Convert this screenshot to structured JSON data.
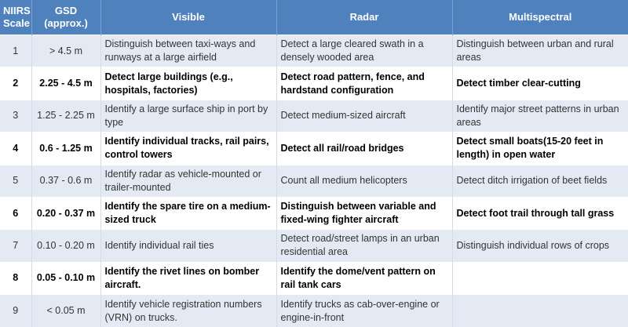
{
  "headers": {
    "scale": "NIIRS\nScale",
    "gsd": "GSD\n(approx.)",
    "visible": "Visible",
    "radar": "Radar",
    "multispectral": "Multispectral"
  },
  "rows": [
    {
      "scale": "1",
      "gsd": "> 4.5 m",
      "visible": "Distinguish between taxi-ways and runways at a large airfield",
      "radar": "Detect a large cleared swath in a densely wooded area",
      "multispectral": "Distinguish between urban and rural areas"
    },
    {
      "scale": "2",
      "gsd": "2.25 - 4.5 m",
      "visible": "Detect large buildings (e.g., hospitals, factories)",
      "radar": "Detect road pattern, fence, and hardstand configuration",
      "multispectral": "Detect timber clear-cutting"
    },
    {
      "scale": "3",
      "gsd": "1.25 - 2.25 m",
      "visible": "Identify a large surface ship in port by type",
      "radar": "Detect medium-sized aircraft",
      "multispectral": "Identify major street patterns in urban areas"
    },
    {
      "scale": "4",
      "gsd": "0.6 - 1.25 m",
      "visible": "Identify individual tracks, rail pairs, control towers",
      "radar": "Detect all rail/road bridges",
      "multispectral": "Detect small boats(15-20 feet in length) in open water"
    },
    {
      "scale": "5",
      "gsd": "0.37 - 0.6 m",
      "visible": "Identify radar as vehicle-mounted or trailer-mounted",
      "radar": "Count all medium helicopters",
      "multispectral": "Detect ditch irrigation of beet fields"
    },
    {
      "scale": "6",
      "gsd": "0.20 - 0.37 m",
      "visible": "Identify the spare tire on a medium-sized truck",
      "radar": "Distinguish between variable and fixed-wing fighter aircraft",
      "multispectral": "Detect foot trail through tall grass"
    },
    {
      "scale": "7",
      "gsd": "0.10 - 0.20 m",
      "visible": "Identify individual rail ties",
      "radar": "Detect road/street lamps in an urban residential area",
      "multispectral": "Distinguish individual rows of crops"
    },
    {
      "scale": "8",
      "gsd": "0.05 - 0.10 m",
      "visible": "Identify the rivet lines on bomber aircraft.",
      "radar": "Identify the dome/vent pattern on rail tank cars",
      "multispectral": ""
    },
    {
      "scale": "9",
      "gsd": "< 0.05 m",
      "visible": "Identify vehicle registration numbers (VRN) on trucks.",
      "radar": "Identify trucks as cab-over-engine or engine-in-front",
      "multispectral": ""
    }
  ]
}
